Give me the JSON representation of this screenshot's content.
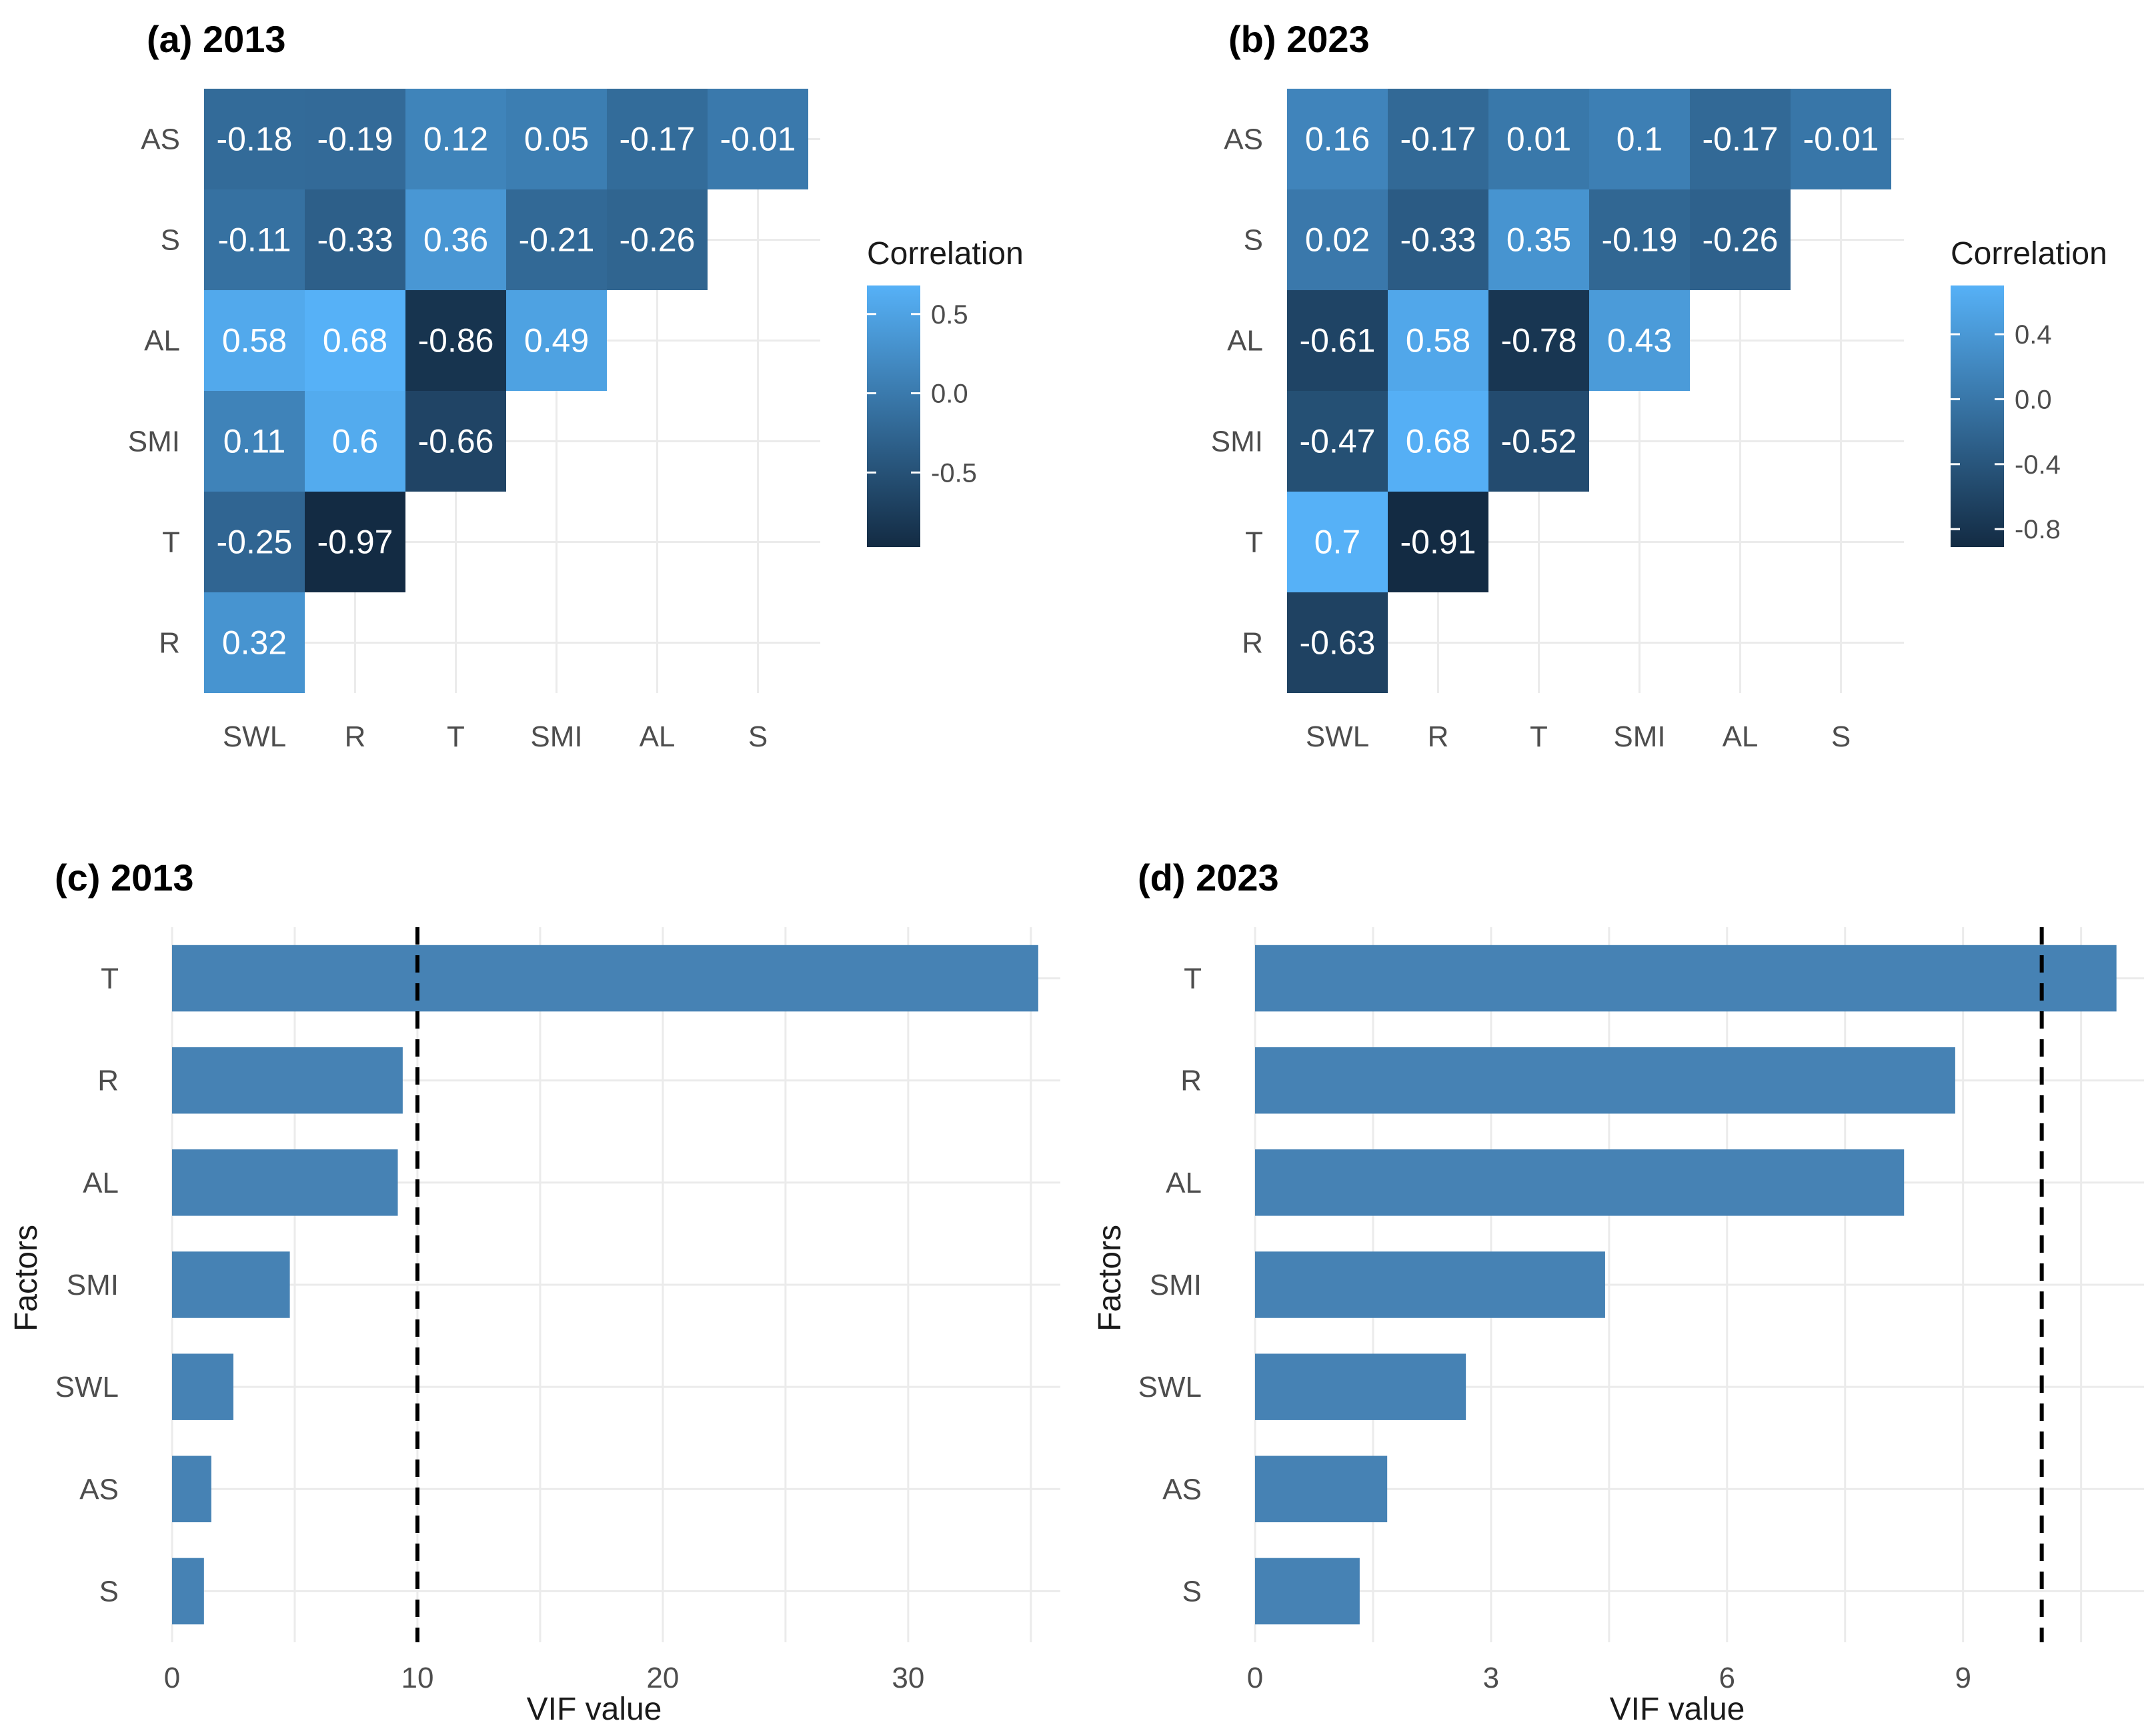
{
  "chart_data": [
    {
      "type": "heatmap",
      "title": "(a) 2013",
      "x_categories": [
        "SWL",
        "R",
        "T",
        "SMI",
        "AL",
        "S"
      ],
      "y_categories": [
        "AS",
        "S",
        "AL",
        "SMI",
        "T",
        "R"
      ],
      "values": [
        [
          -0.18,
          -0.19,
          0.12,
          0.05,
          -0.17,
          -0.01
        ],
        [
          -0.11,
          -0.33,
          0.36,
          -0.21,
          -0.26,
          null
        ],
        [
          0.58,
          0.68,
          -0.86,
          0.49,
          null,
          null
        ],
        [
          0.11,
          0.6,
          -0.66,
          null,
          null,
          null
        ],
        [
          -0.25,
          -0.97,
          null,
          null,
          null,
          null
        ],
        [
          0.32,
          null,
          null,
          null,
          null,
          null
        ]
      ],
      "legend": {
        "title": "Correlation",
        "range": [
          -0.97,
          0.68
        ],
        "ticks": [
          0.5,
          0.0,
          -0.5
        ],
        "tick_labels": [
          "0.5",
          "0.0",
          "-0.5"
        ]
      }
    },
    {
      "type": "heatmap",
      "title": "(b) 2023",
      "x_categories": [
        "SWL",
        "R",
        "T",
        "SMI",
        "AL",
        "S"
      ],
      "y_categories": [
        "AS",
        "S",
        "AL",
        "SMI",
        "T",
        "R"
      ],
      "values": [
        [
          0.16,
          -0.17,
          0.01,
          0.1,
          -0.17,
          -0.01
        ],
        [
          0.02,
          -0.33,
          0.35,
          -0.19,
          -0.26,
          null
        ],
        [
          -0.61,
          0.58,
          -0.78,
          0.43,
          null,
          null
        ],
        [
          -0.47,
          0.68,
          -0.52,
          null,
          null,
          null
        ],
        [
          0.7,
          -0.91,
          null,
          null,
          null,
          null
        ],
        [
          -0.63,
          null,
          null,
          null,
          null,
          null
        ]
      ],
      "legend": {
        "title": "Correlation",
        "range": [
          -0.91,
          0.7
        ],
        "ticks": [
          0.4,
          0.0,
          -0.4,
          -0.8
        ],
        "tick_labels": [
          "0.4",
          "0.0",
          "-0.4",
          "-0.8"
        ]
      }
    },
    {
      "type": "bar",
      "orientation": "horizontal",
      "title": "(c) 2013",
      "categories": [
        "T",
        "R",
        "AL",
        "SMI",
        "SWL",
        "AS",
        "S"
      ],
      "values": [
        35.3,
        9.4,
        9.2,
        4.8,
        2.5,
        1.6,
        1.3
      ],
      "xlabel": "VIF value",
      "ylabel": "Factors",
      "xlim": [
        0,
        36.2
      ],
      "xticks": [
        0,
        10,
        20,
        30
      ],
      "xtick_labels": [
        "0",
        "10",
        "20",
        "30"
      ],
      "threshold": 10,
      "bar_color": "#4682b4"
    },
    {
      "type": "bar",
      "orientation": "horizontal",
      "title": "(d) 2023",
      "categories": [
        "T",
        "R",
        "AL",
        "SMI",
        "SWL",
        "AS",
        "S"
      ],
      "values": [
        10.95,
        8.9,
        8.25,
        4.45,
        2.68,
        1.68,
        1.33
      ],
      "xlabel": "VIF value",
      "ylabel": "Factors",
      "xlim": [
        0,
        11.3
      ],
      "xticks": [
        0,
        3,
        6,
        9
      ],
      "xtick_labels": [
        "0",
        "3",
        "6",
        "9"
      ],
      "threshold": 10,
      "bar_color": "#4682b4"
    }
  ],
  "colors": {
    "low": "#132b43",
    "high": "#56b1f7",
    "bar": "#4682b4",
    "grid": "#ebebeb",
    "threshold": "#000000"
  }
}
